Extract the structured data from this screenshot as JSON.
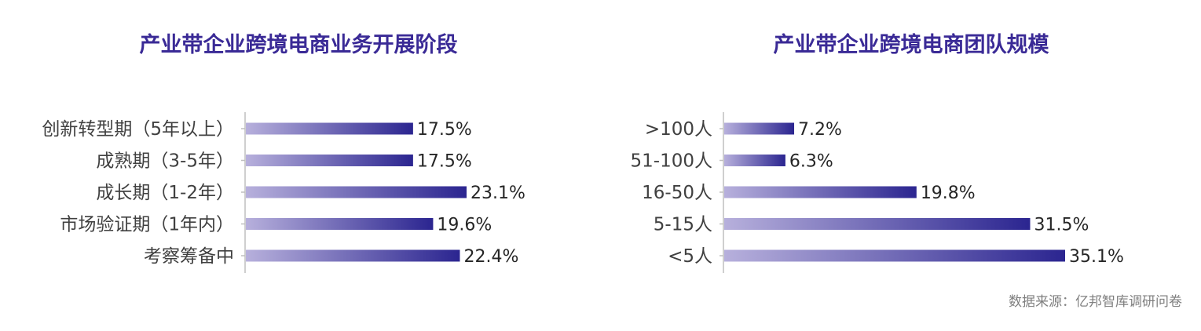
{
  "source_note": "数据来源：亿邦智库调研问卷",
  "colors": {
    "title": "#3a2a96",
    "bar_start": "#b7b0dc",
    "bar_end": "#2b2590",
    "axis": "#bfbfbf"
  },
  "chart_data": [
    {
      "type": "bar",
      "orientation": "horizontal",
      "title": "产业带企业跨境电商业务开展阶段",
      "categories": [
        "创新转型期（5年以上）",
        "成熟期（3-5年）",
        "成长期（1-2年）",
        "市场验证期（1年内）",
        "考察筹备中"
      ],
      "values": [
        17.5,
        17.5,
        23.1,
        19.6,
        22.4
      ],
      "value_labels": [
        "17.5%",
        "17.5%",
        "23.1%",
        "19.6%",
        "22.4%"
      ],
      "unit": "%",
      "xlim": [
        0,
        23.1
      ],
      "grid": false,
      "legend": "none"
    },
    {
      "type": "bar",
      "orientation": "horizontal",
      "title": "产业带企业跨境电商团队规模",
      "categories": [
        ">100人",
        "51-100人",
        "16-50人",
        "5-15人",
        "<5人"
      ],
      "values": [
        7.2,
        6.3,
        19.8,
        31.5,
        35.1
      ],
      "value_labels": [
        "7.2%",
        "6.3%",
        "19.8%",
        "31.5%",
        "35.1%"
      ],
      "unit": "%",
      "xlim": [
        0,
        35.1
      ],
      "grid": false,
      "legend": "none"
    }
  ]
}
